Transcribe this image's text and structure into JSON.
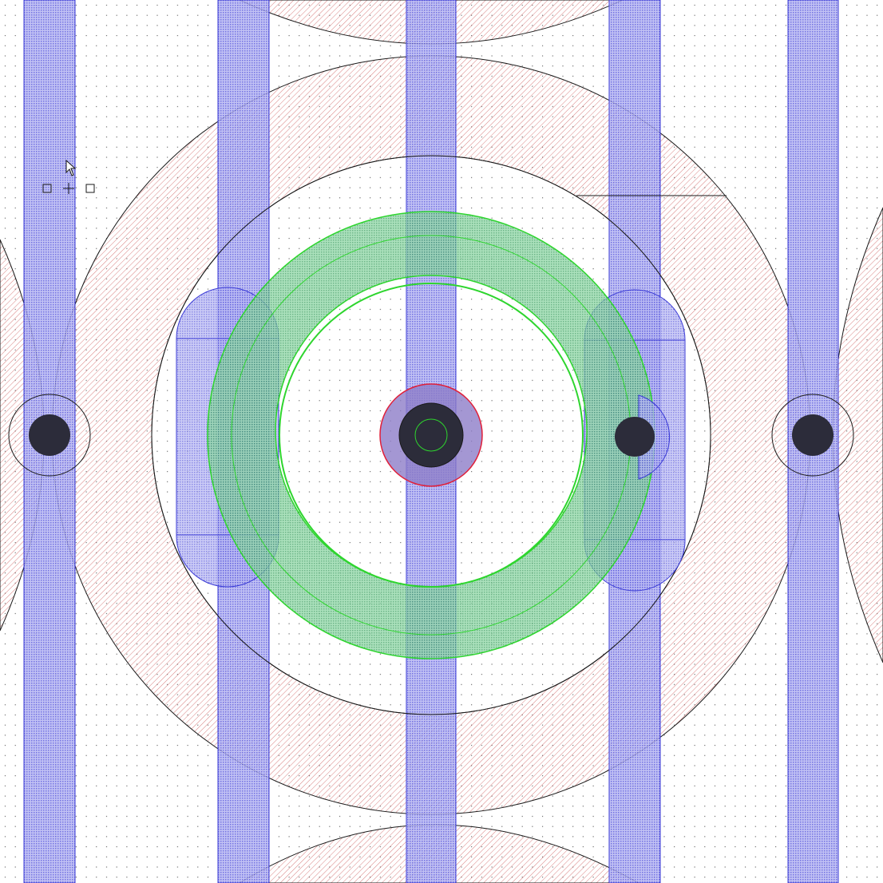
{
  "colors": {
    "background": "#ffffff",
    "grid_dot": "#2a2a2a",
    "metal_fill": "#6f6fe0",
    "metal_stroke": "#3a3ad6",
    "poly_hatch": "#d05050",
    "ring_green": "#2ed52e",
    "ring_fill": "#57c079",
    "outline": "#1a1a1a",
    "via_dark": "#2c2c3a",
    "via_red": "#e0203a"
  },
  "icons": {
    "cursor": "arrow-pointer-icon",
    "snap": "snap-markers-icon"
  }
}
